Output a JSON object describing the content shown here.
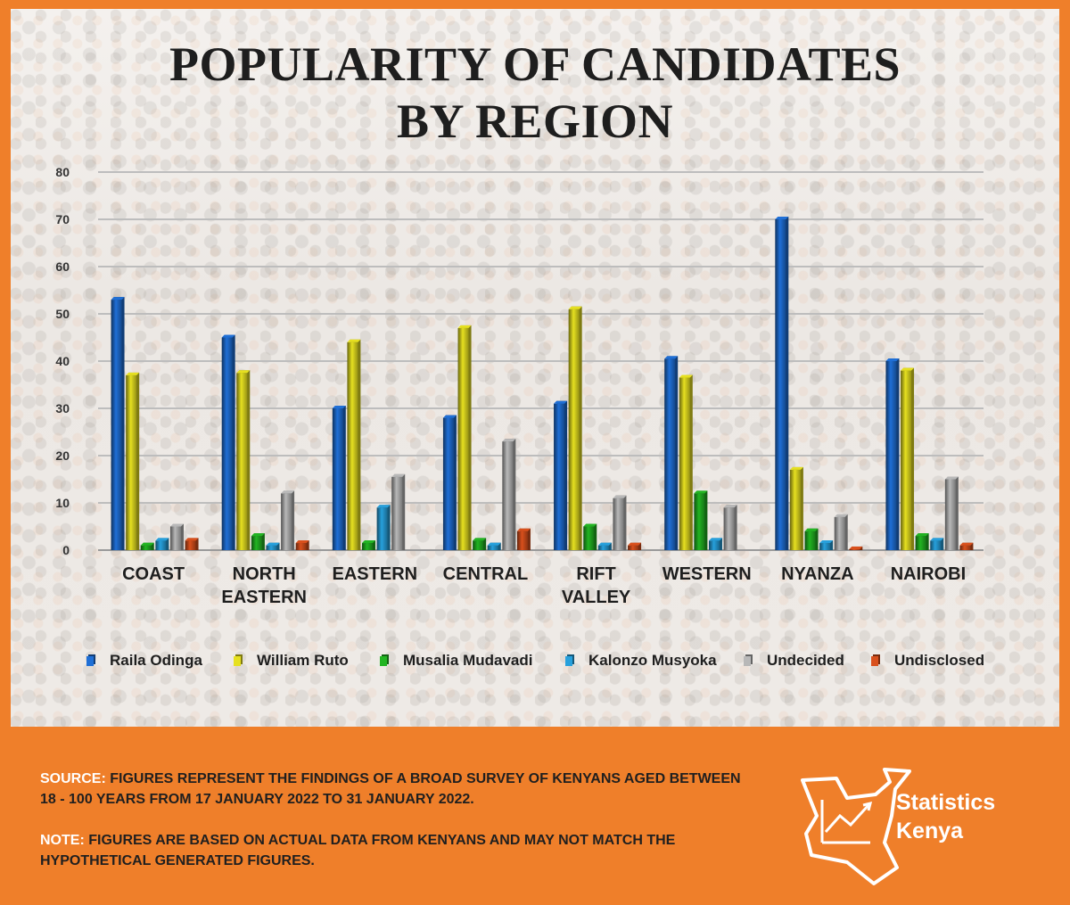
{
  "title_line1": "POPULARITY OF CANDIDATES",
  "title_line2": "BY REGION",
  "chart_data": {
    "type": "bar",
    "title": "POPULARITY OF CANDIDATES BY REGION",
    "categories": [
      "COAST",
      "NORTH EASTERN",
      "EASTERN",
      "CENTRAL",
      "RIFT VALLEY",
      "WESTERN",
      "NYANZA",
      "NAIROBI"
    ],
    "category_lines": [
      [
        "COAST"
      ],
      [
        "NORTH",
        "EASTERN"
      ],
      [
        "EASTERN"
      ],
      [
        "CENTRAL"
      ],
      [
        "RIFT",
        "VALLEY"
      ],
      [
        "WESTERN"
      ],
      [
        "NYANZA"
      ],
      [
        "NAIROBI"
      ]
    ],
    "ylim": [
      0,
      80
    ],
    "yticks": [
      0,
      10,
      20,
      30,
      40,
      50,
      60,
      70,
      80
    ],
    "grid": true,
    "legend_position": "bottom",
    "series": [
      {
        "name": "Raila Odinga",
        "color": "#1f6fd6",
        "values": [
          53,
          45,
          30,
          28,
          31,
          40.5,
          70,
          40
        ]
      },
      {
        "name": "William Ruto",
        "color": "#e6e020",
        "values": [
          37,
          37.5,
          44,
          47,
          51,
          36.5,
          17,
          38
        ]
      },
      {
        "name": "Musalia Mudavadi",
        "color": "#22b422",
        "values": [
          1,
          3,
          1.5,
          2,
          5,
          12,
          4,
          3
        ]
      },
      {
        "name": "Kalonzo Musyoka",
        "color": "#27a0dc",
        "values": [
          2,
          1,
          9,
          1,
          1,
          2,
          1.5,
          2
        ]
      },
      {
        "name": "Undecided",
        "color": "#b8b8b8",
        "values": [
          5,
          12,
          15.5,
          23,
          11,
          9,
          7,
          15
        ]
      },
      {
        "name": "Undisclosed",
        "color": "#d9501c",
        "values": [
          2,
          1.5,
          0,
          4,
          1,
          0,
          0.2,
          1
        ]
      }
    ]
  },
  "footer": {
    "source_key": "SOURCE:",
    "source_text": " FIGURES REPRESENT THE FINDINGS OF A BROAD SURVEY OF KENYANS AGED BETWEEN 18 - 100 YEARS FROM 17 JANUARY 2022 TO 31 JANUARY 2022.",
    "note_key": "NOTE:",
    "note_text": " FIGURES ARE BASED ON ACTUAL DATA FROM KENYANS AND MAY NOT MATCH THE HYPOTHETICAL GENERATED FIGURES."
  },
  "logo": {
    "line1": "Statistics",
    "line2": "Kenya",
    "icon": "kenya-map-trend-icon"
  }
}
